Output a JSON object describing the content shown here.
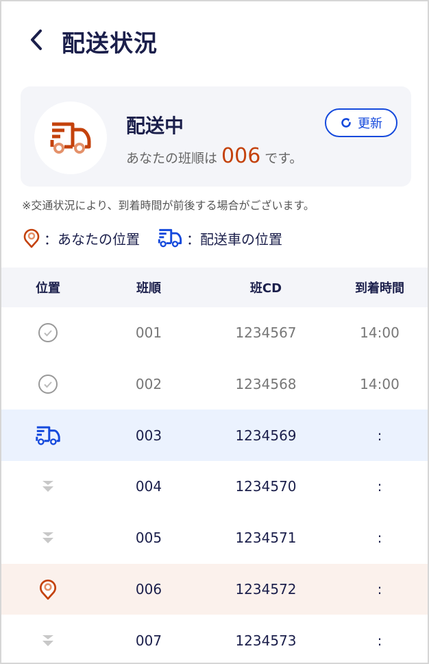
{
  "header": {
    "back_icon": "chevron-left-icon",
    "title": "配送状況"
  },
  "status_card": {
    "icon": "delivery-truck-icon",
    "status": "配送中",
    "message_prefix": "あなたの班順は",
    "order_number": "006",
    "message_suffix": "です。",
    "refresh_label": "更新",
    "refresh_icon": "refresh-icon"
  },
  "note": "※交通状況により、到着時間が前後する場合がございます。",
  "legend": [
    {
      "icon": "location-pin-icon",
      "label": "：あなたの位置"
    },
    {
      "icon": "delivery-truck-icon",
      "label": "：配送車の位置"
    }
  ],
  "table": {
    "columns": [
      "位置",
      "班順",
      "班CD",
      "到着時間"
    ],
    "rows": [
      {
        "status": "done",
        "icon": "check-circle-icon",
        "order": "001",
        "code": "1234567",
        "time": "14:00"
      },
      {
        "status": "done",
        "icon": "check-circle-icon",
        "order": "002",
        "code": "1234568",
        "time": "14:00"
      },
      {
        "status": "truck",
        "icon": "delivery-truck-icon",
        "order": "003",
        "code": "1234569",
        "time": ":"
      },
      {
        "status": "pending",
        "icon": "chevron-double-down-icon",
        "order": "004",
        "code": "1234570",
        "time": ":"
      },
      {
        "status": "pending",
        "icon": "chevron-double-down-icon",
        "order": "005",
        "code": "1234571",
        "time": ":"
      },
      {
        "status": "me",
        "icon": "location-pin-icon",
        "order": "006",
        "code": "1234572",
        "time": ":"
      },
      {
        "status": "pending",
        "icon": "chevron-double-down-icon",
        "order": "007",
        "code": "1234573",
        "time": ":"
      }
    ]
  },
  "colors": {
    "text": "#1b1f4b",
    "accent_orange": "#c4420c",
    "accent_blue": "#1449dc",
    "truck_row_bg": "#ebf2fe",
    "my_row_bg": "#fbf1ec"
  }
}
